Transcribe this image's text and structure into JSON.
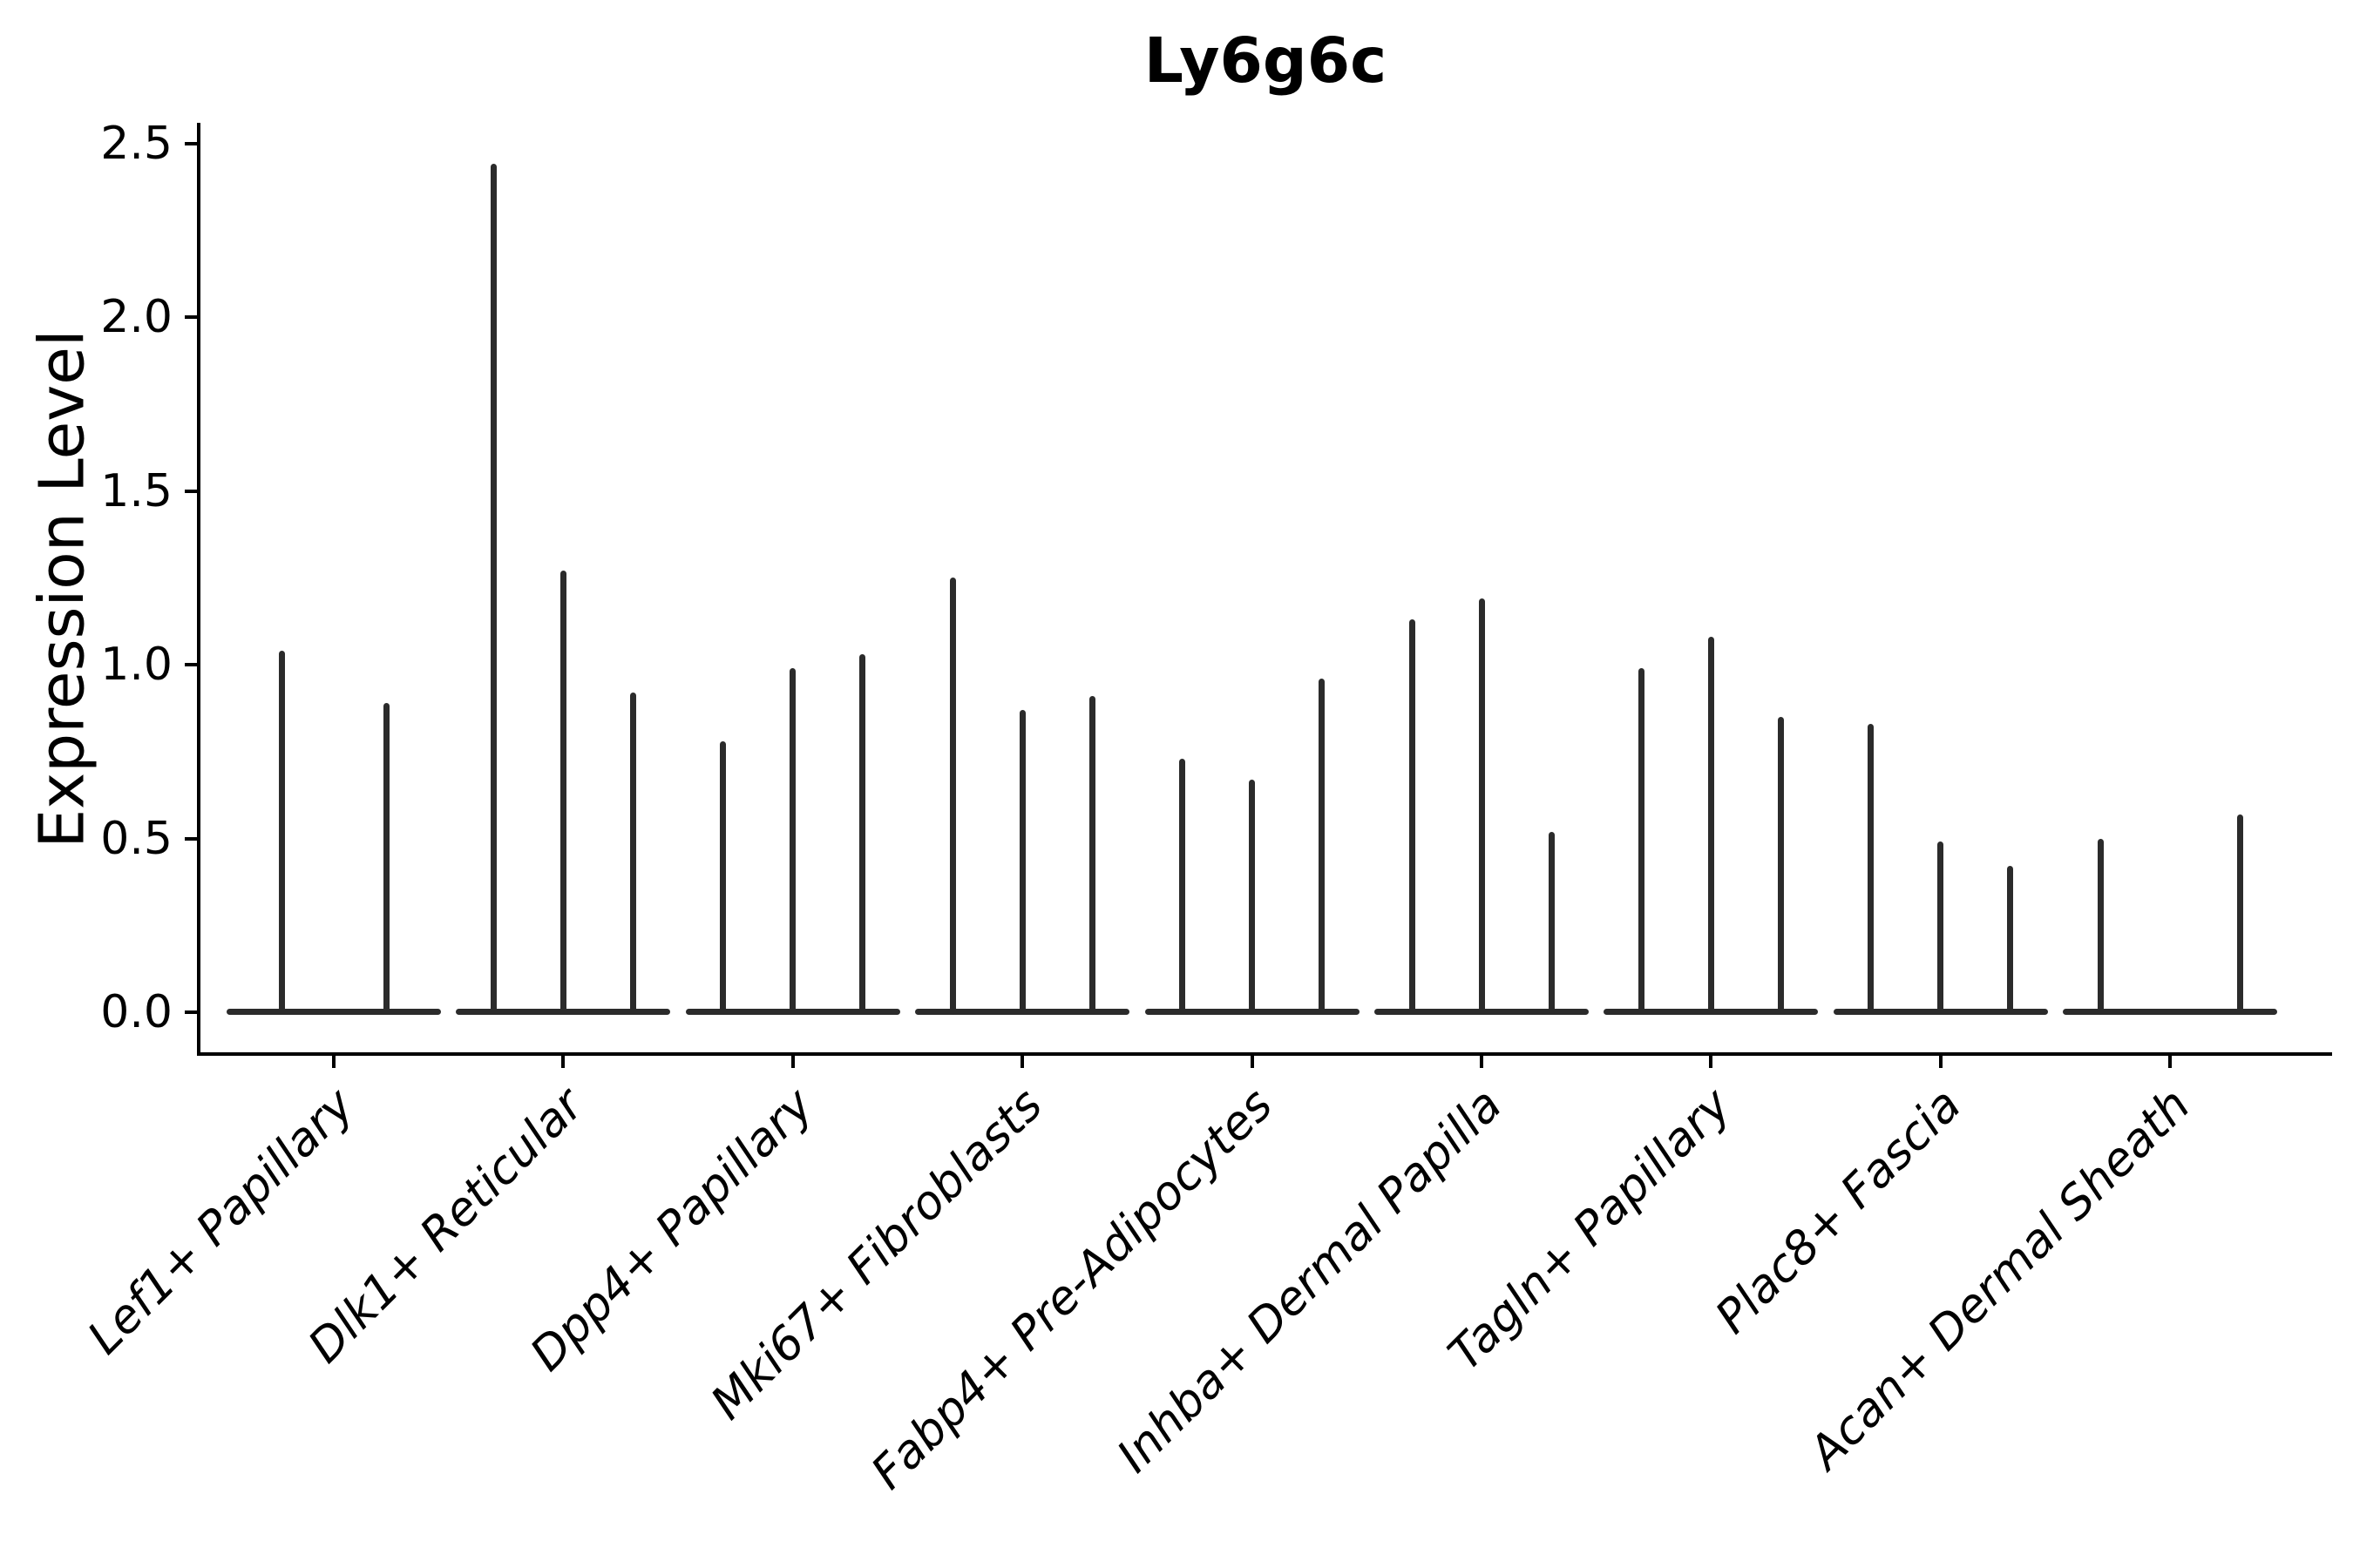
{
  "title": "Ly6g6c",
  "y_axis": {
    "label": "Expression Level",
    "tick_labels": [
      "0.0",
      "0.5",
      "1.0",
      "1.5",
      "2.0",
      "2.5"
    ]
  },
  "colors": {
    "violin_ink": "#2b2b2b",
    "axis": "#000000",
    "background": "#ffffff"
  },
  "chart_data": {
    "type": "violin",
    "title": "Ly6g6c",
    "xlabel": "",
    "ylabel": "Expression Level",
    "ylim": [
      0,
      2.5
    ],
    "yticks": [
      0.0,
      0.5,
      1.0,
      1.5,
      2.0,
      2.5
    ],
    "ytick_labels": [
      "0.0",
      "0.5",
      "1.0",
      "1.5",
      "2.0",
      "2.5"
    ],
    "grid": false,
    "legend": "none",
    "categories": [
      "Lef1+ Papillary",
      "Dlk1+ Reticular",
      "Dpp4+ Papillary",
      "Mki67+ Fibroblasts",
      "Fabp4+ Pre-Adipocytes",
      "Inhba+ Dermal Papilla",
      "Tagln+ Papillary",
      "Plac8+ Fascia",
      "Acan+ Dermal Sheath"
    ],
    "groups": [
      {
        "label": "Lef1+ Papillary",
        "violin_maxima": [
          1.04,
          0.89
        ]
      },
      {
        "label": "Dlk1+ Reticular",
        "violin_maxima": [
          2.44,
          1.27,
          0.92
        ]
      },
      {
        "label": "Dpp4+ Papillary",
        "violin_maxima": [
          0.78,
          0.99,
          1.03
        ]
      },
      {
        "label": "Mki67+ Fibroblasts",
        "violin_maxima": [
          1.25,
          0.87,
          0.91
        ]
      },
      {
        "label": "Fabp4+ Pre-Adipocytes",
        "violin_maxima": [
          0.73,
          0.67,
          0.96
        ]
      },
      {
        "label": "Inhba+ Dermal Papilla",
        "violin_maxima": [
          1.13,
          1.19,
          0.52
        ]
      },
      {
        "label": "Tagln+ Papillary",
        "violin_maxima": [
          0.99,
          1.08,
          0.85
        ]
      },
      {
        "label": "Plac8+ Fascia",
        "violin_maxima": [
          0.83,
          0.49,
          0.42
        ]
      },
      {
        "label": "Acan+ Dermal Sheath",
        "violin_maxima": [
          0.5,
          0.0,
          0.57
        ]
      }
    ]
  }
}
